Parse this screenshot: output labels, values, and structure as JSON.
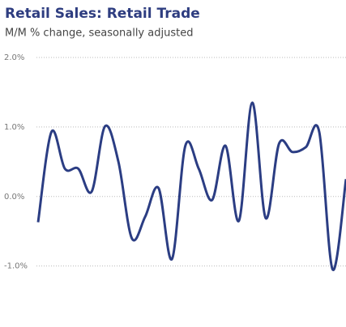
{
  "chart_data": {
    "type": "line",
    "title": "Retail Sales: Retail Trade",
    "subtitle": "M/M % change, seasonally adjusted",
    "categories": [
      null,
      null,
      null,
      null,
      null,
      null,
      null,
      null,
      null,
      null,
      null,
      null,
      null,
      null,
      null,
      null,
      null,
      null,
      null,
      null,
      null,
      null,
      null,
      null
    ],
    "values": [
      -0.37,
      0.93,
      0.4,
      0.4,
      0.07,
      1.01,
      0.5,
      -0.6,
      -0.29,
      0.12,
      -0.9,
      0.73,
      0.4,
      -0.05,
      0.73,
      -0.35,
      1.35,
      -0.31,
      0.76,
      0.64,
      0.71,
      0.93,
      -1.05,
      0.25
    ],
    "color": "#2b3d83",
    "ylim": [
      -1.4,
      2.0
    ],
    "yticks": [
      {
        "value": 2,
        "label": "2.0%"
      },
      {
        "value": 1,
        "label": "1.0%"
      },
      {
        "value": 0,
        "label": "0.0%"
      },
      {
        "value": -1,
        "label": "-1.0%"
      }
    ],
    "grid": true
  }
}
